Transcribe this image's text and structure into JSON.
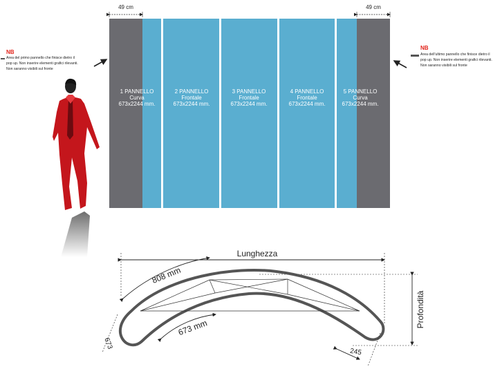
{
  "top_dims": {
    "left": "49 cm",
    "right": "49 cm"
  },
  "notes": {
    "left": {
      "title": "NB",
      "lines": [
        "Area del primo pannello che finisce dietro il",
        "pop up. Non inserire elementi grafici rilevanti.",
        "Non saranno visibili sul fronte"
      ]
    },
    "right": {
      "title": "NB",
      "lines": [
        "Area dell'ultimo pannello che finisce dietro il",
        "pop up. Non inserire elementi grafici rilevanti.",
        "Non saranno visibili sul fronte"
      ]
    }
  },
  "panels": [
    {
      "name": "1 PANNELLO",
      "type": "Curva",
      "size": "673x2244 mm."
    },
    {
      "name": "2 PANNELLO",
      "type": "Frontale",
      "size": "673x2244 mm."
    },
    {
      "name": "3 PANNELLO",
      "type": "Frontale",
      "size": "673x2244 mm."
    },
    {
      "name": "4 PANNELLO",
      "type": "Frontale",
      "size": "673x2244 mm."
    },
    {
      "name": "5 PANNELLO",
      "type": "Curva",
      "size": "673x2244 mm."
    }
  ],
  "plan": {
    "length_label": "Lunghezza",
    "depth_label": "Profondità",
    "dim_outer": "808 mm",
    "dim_inner": "673 mm",
    "dim_end_left": "673",
    "dim_end_right": "245"
  },
  "colors": {
    "panel_blue": "#5aaed0",
    "panel_grey": "#6b6b70",
    "note_red": "#e2231a",
    "figure_red": "#c4161c"
  }
}
